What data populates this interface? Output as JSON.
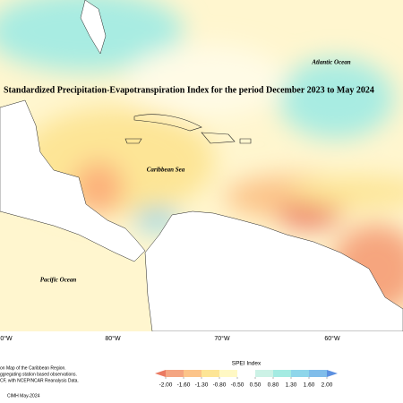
{
  "title": "Standardized Precipitation-Evapotranspiration Index for the period December 2023 to May 2024",
  "ocean_labels": [
    "Atlantic Ocean",
    "Caribbean Sea",
    "Pacific Ocean"
  ],
  "longitude_labels": [
    "0°W",
    "80°W",
    "70°W",
    "60°W"
  ],
  "notes": [
    "on Map of the Caribbean Region.",
    "ggregating station based observations.",
    "CF, with NCEP/NCAR Reanalysis Data."
  ],
  "credit": "CIMH May-2024",
  "legend": {
    "title": "SPEI Index",
    "ticks": [
      {
        "value": -2,
        "label": "-2.00"
      },
      {
        "value": -1.6,
        "label": "-1.60"
      },
      {
        "value": -1.3,
        "label": "-1.30"
      },
      {
        "value": -0.8,
        "label": "-0.80"
      },
      {
        "value": -0.5,
        "label": "-0.50"
      },
      {
        "value": 0.5,
        "label": "0.50"
      },
      {
        "value": 0.8,
        "label": "0.80"
      },
      {
        "value": 1.3,
        "label": "1.30"
      },
      {
        "value": 1.6,
        "label": "1.60"
      },
      {
        "value": 2,
        "label": "2.00"
      }
    ],
    "colors": [
      "#ea7a62",
      "#f4a582",
      "#fcc48a",
      "#fde596",
      "#fff8c4",
      "#ffffff",
      "#ccf2e6",
      "#a4ebe2",
      "#8fd6ea",
      "#80bdea",
      "#5c90e0"
    ]
  }
}
